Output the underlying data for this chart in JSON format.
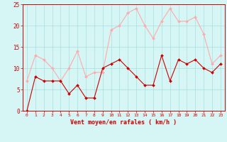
{
  "x": [
    0,
    1,
    2,
    3,
    4,
    5,
    6,
    7,
    8,
    9,
    10,
    11,
    12,
    13,
    14,
    15,
    16,
    17,
    18,
    19,
    20,
    21,
    22,
    23
  ],
  "wind_avg": [
    0,
    8,
    7,
    7,
    7,
    4,
    6,
    3,
    3,
    10,
    11,
    12,
    10,
    8,
    6,
    6,
    13,
    7,
    12,
    11,
    12,
    10,
    9,
    11
  ],
  "wind_gust": [
    7,
    13,
    12,
    10,
    7,
    10,
    14,
    8,
    9,
    9,
    19,
    20,
    23,
    24,
    20,
    17,
    21,
    24,
    21,
    21,
    22,
    18,
    11,
    13
  ],
  "color_avg": "#cc0000",
  "color_gust": "#ffaaaa",
  "bg_color": "#d6f5f5",
  "grid_color": "#aadddd",
  "xlabel": "Vent moyen/en rafales ( km/h )",
  "xlabel_color": "#cc0000",
  "tick_color": "#cc0000",
  "ylim": [
    0,
    25
  ],
  "yticks": [
    0,
    5,
    10,
    15,
    20,
    25
  ],
  "xlim": [
    -0.5,
    23.5
  ]
}
